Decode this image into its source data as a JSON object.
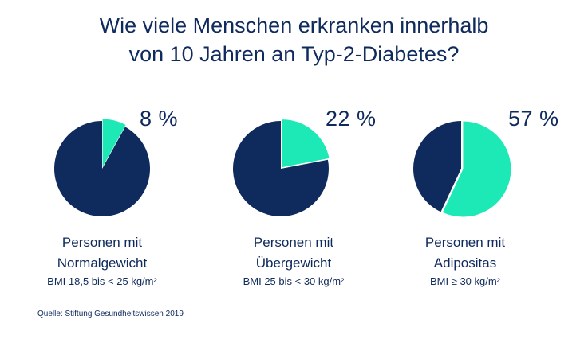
{
  "title": {
    "line1": "Wie viele Menschen erkranken innerhalb",
    "line2": "von 10 Jahren an Typ-2-Diabetes?"
  },
  "colors": {
    "dark": "#0f2a5c",
    "accent": "#1de9b6"
  },
  "chart_data": {
    "type": "pie",
    "title": "Wie viele Menschen erkranken innerhalb von 10 Jahren an Typ-2-Diabetes?",
    "pies": [
      {
        "value_label": "8 %",
        "value": 8,
        "label_line1": "Personen mit",
        "label_line2": "Normalgewicht",
        "bmi": "BMI 18,5 bis < 25 kg/m²"
      },
      {
        "value_label": "22 %",
        "value": 22,
        "label_line1": "Personen mit",
        "label_line2": "Übergewicht",
        "bmi": "BMI 25 bis < 30 kg/m²"
      },
      {
        "value_label": "57 %",
        "value": 57,
        "label_line1": "Personen mit",
        "label_line2": "Adipositas",
        "bmi": "BMI ≥ 30 kg/m²"
      }
    ]
  },
  "source": "Quelle: Stiftung Gesundheitswissen 2019"
}
